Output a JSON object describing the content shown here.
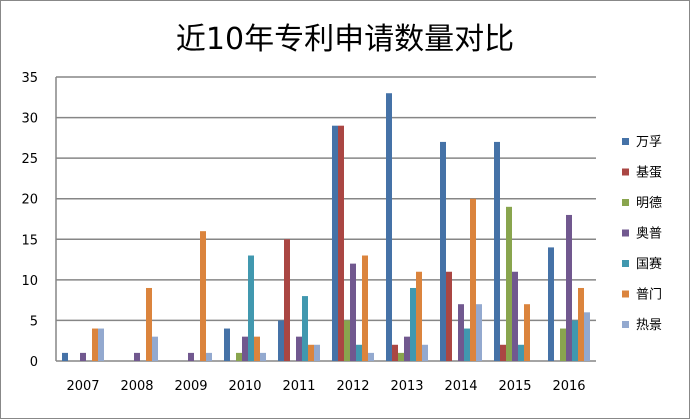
{
  "chart_data": {
    "type": "bar",
    "title": "近10年专利申请数量对比",
    "xlabel": "",
    "ylabel": "",
    "ylim": [
      0,
      35
    ],
    "yticks": [
      "0",
      "5",
      "10",
      "15",
      "20",
      "25",
      "30",
      "35"
    ],
    "grid": true,
    "legend_position": "right",
    "categories": [
      "2007",
      "2008",
      "2009",
      "2010",
      "2011",
      "2012",
      "2013",
      "2014",
      "2015",
      "2016"
    ],
    "series": [
      {
        "name": "万孚",
        "color": "#4572A7",
        "values": [
          1,
          0,
          0,
          4,
          5,
          29,
          33,
          27,
          27,
          14
        ]
      },
      {
        "name": "基蛋",
        "color": "#AA4643",
        "values": [
          0,
          0,
          0,
          0,
          15,
          29,
          2,
          11,
          2,
          0
        ]
      },
      {
        "name": "明德",
        "color": "#89A54E",
        "values": [
          0,
          0,
          0,
          1,
          0,
          5,
          1,
          0,
          19,
          4
        ]
      },
      {
        "name": "奥普",
        "color": "#71588F",
        "values": [
          1,
          1,
          1,
          3,
          3,
          12,
          3,
          7,
          11,
          18
        ]
      },
      {
        "name": "国赛",
        "color": "#4198AF",
        "values": [
          0,
          0,
          0,
          13,
          8,
          2,
          9,
          4,
          2,
          5
        ]
      },
      {
        "name": "普门",
        "color": "#DB843D",
        "values": [
          4,
          9,
          16,
          3,
          2,
          13,
          11,
          20,
          7,
          9
        ]
      },
      {
        "name": "热景",
        "color": "#93A9CF",
        "values": [
          4,
          3,
          1,
          1,
          2,
          1,
          2,
          7,
          0,
          6
        ]
      }
    ]
  }
}
